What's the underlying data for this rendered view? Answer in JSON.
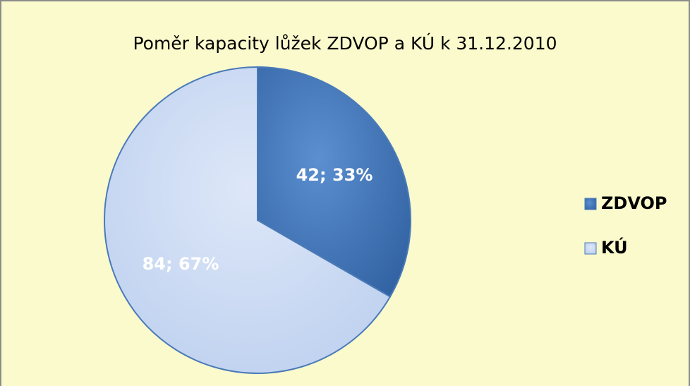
{
  "chart_data": {
    "type": "pie",
    "title": "Poměr kapacity lůžek ZDVOP a KÚ k 31.12.2010",
    "categories": [
      "ZDVOP",
      "KÚ"
    ],
    "values": [
      42,
      84
    ],
    "value_labels": [
      "42; 33%",
      "84; 67%"
    ],
    "colors": [
      "#4a7dbf",
      "#c8d8f3"
    ],
    "legend": "right"
  }
}
